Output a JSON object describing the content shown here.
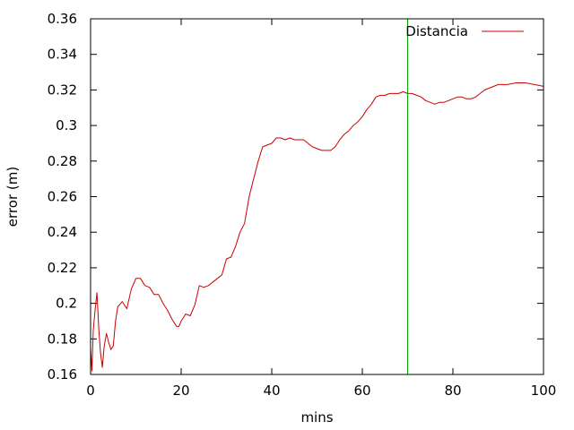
{
  "chart_data": {
    "type": "line",
    "title": "",
    "xlabel": "mins",
    "ylabel": "error (m)",
    "xlim": [
      0,
      100
    ],
    "ylim": [
      0.16,
      0.36
    ],
    "x_ticks": [
      0,
      20,
      40,
      60,
      80,
      100
    ],
    "x_tick_labels": [
      "0",
      "20",
      "40",
      "60",
      "80",
      "100"
    ],
    "y_ticks": [
      0.16,
      0.18,
      0.2,
      0.22,
      0.24,
      0.26,
      0.28,
      0.3,
      0.32,
      0.34,
      0.36
    ],
    "y_tick_labels": [
      "0.16",
      "0.18",
      "0.2",
      "0.22",
      "0.24",
      "0.26",
      "0.28",
      "0.3",
      "0.32",
      "0.34",
      "0.36"
    ],
    "grid": false,
    "legend_position": "top-right",
    "series": [
      {
        "name": "Distancia",
        "color": "#cc0000",
        "x": [
          0,
          0.3,
          0.6,
          1.0,
          1.4,
          1.8,
          2.2,
          2.6,
          3.0,
          3.5,
          4.0,
          4.5,
          5.0,
          5.5,
          6.0,
          7.0,
          8.0,
          9.0,
          10.0,
          11.0,
          12.0,
          13.0,
          14.0,
          15.0,
          16.0,
          17.0,
          18.0,
          19.0,
          19.5,
          20.0,
          21.0,
          22.0,
          23.0,
          24.0,
          25.0,
          26.0,
          27.0,
          28.0,
          29.0,
          30.0,
          31.0,
          32.0,
          33.0,
          34.0,
          35.0,
          36.0,
          37.0,
          38.0,
          39.0,
          40.0,
          41.0,
          42.0,
          43.0,
          44.0,
          45.0,
          46.0,
          47.0,
          48.0,
          49.0,
          50.0,
          51.0,
          52.0,
          53.0,
          54.0,
          55.0,
          56.0,
          57.0,
          58.0,
          59.0,
          60.0,
          61.0,
          62.0,
          63.0,
          64.0,
          65.0,
          66.0,
          67.0,
          68.0,
          69.0,
          70.0,
          71.0,
          72.0,
          73.0,
          74.0,
          75.0,
          76.0,
          77.0,
          78.0,
          79.0,
          80.0,
          81.0,
          82.0,
          83.0,
          84.0,
          85.0,
          86.0,
          87.0,
          88.0,
          89.0,
          90.0,
          92.0,
          94.0,
          96.0,
          98.0,
          100.0
        ],
        "y": [
          0.175,
          0.162,
          0.185,
          0.196,
          0.206,
          0.186,
          0.172,
          0.164,
          0.176,
          0.183,
          0.178,
          0.174,
          0.176,
          0.19,
          0.198,
          0.201,
          0.197,
          0.208,
          0.214,
          0.214,
          0.21,
          0.209,
          0.205,
          0.205,
          0.2,
          0.196,
          0.191,
          0.187,
          0.187,
          0.19,
          0.194,
          0.193,
          0.199,
          0.21,
          0.209,
          0.21,
          0.212,
          0.214,
          0.216,
          0.225,
          0.226,
          0.232,
          0.24,
          0.245,
          0.26,
          0.27,
          0.28,
          0.288,
          0.289,
          0.29,
          0.293,
          0.293,
          0.292,
          0.293,
          0.292,
          0.292,
          0.292,
          0.29,
          0.288,
          0.287,
          0.286,
          0.286,
          0.286,
          0.288,
          0.292,
          0.295,
          0.297,
          0.3,
          0.302,
          0.305,
          0.309,
          0.312,
          0.316,
          0.317,
          0.317,
          0.318,
          0.318,
          0.318,
          0.319,
          0.318,
          0.318,
          0.317,
          0.316,
          0.314,
          0.313,
          0.312,
          0.313,
          0.313,
          0.314,
          0.315,
          0.316,
          0.316,
          0.315,
          0.315,
          0.316,
          0.318,
          0.32,
          0.321,
          0.322,
          0.323,
          0.323,
          0.324,
          0.324,
          0.323,
          0.322
        ]
      }
    ],
    "markers": [
      {
        "type": "vertical-line",
        "x": 70,
        "color": "#00aa00"
      }
    ]
  }
}
